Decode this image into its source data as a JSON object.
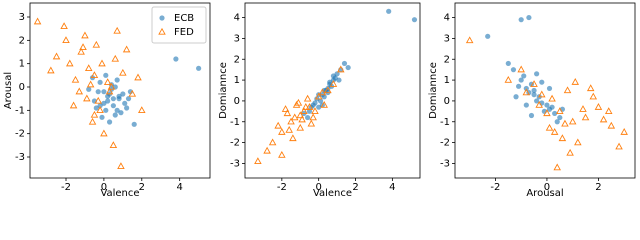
{
  "chart_data": [
    {
      "type": "scatter",
      "xlabel": "Valence",
      "ylabel": "Arousal",
      "xlim": [
        -3.9,
        5.6
      ],
      "ylim": [
        -3.9,
        3.6
      ],
      "xticks": [
        -2,
        0,
        2,
        4
      ],
      "yticks": [
        -3,
        -2,
        -1,
        0,
        1,
        2,
        3
      ],
      "legend": "upper right",
      "series": [
        {
          "name": "ECB",
          "color": "#1f77b4",
          "marker": "circle",
          "x": [
            0.2,
            0.5,
            -0.3,
            0.8,
            0.1,
            -0.5,
            1.0,
            0.4,
            0.0,
            0.6,
            -0.2,
            1.2,
            0.3,
            -0.8,
            0.7,
            0.9,
            -0.1,
            0.5,
            1.4,
            0.2,
            -0.4,
            0.6,
            1.1,
            0.0,
            0.3,
            -0.6,
            0.8,
            1.6,
            3.8,
            5.0,
            0.4,
            -0.2,
            1.3,
            0.1,
            0.7
          ],
          "values": [
            -0.4,
            -0.8,
            -0.2,
            -0.5,
            -1.0,
            -0.6,
            -0.3,
            0.1,
            -0.7,
            -1.2,
            0.2,
            -0.9,
            -0.3,
            -0.1,
            0.3,
            -1.1,
            -1.3,
            -0.5,
            -0.2,
            -0.6,
            -0.9,
            0.0,
            -0.7,
            -0.2,
            -1.5,
            0.4,
            -0.4,
            -1.6,
            1.2,
            0.8,
            -0.1,
            -0.8,
            -0.5,
            0.5,
            -1.0
          ]
        },
        {
          "name": "FED",
          "color": "#ff7f0e",
          "marker": "triangle",
          "x": [
            -0.5,
            -1.2,
            0.3,
            -0.8,
            -2.0,
            0.6,
            -0.2,
            -1.5,
            1.0,
            -0.9,
            -3.5,
            -2.1,
            0.9,
            2.0,
            -0.4,
            -1.8,
            0.2,
            -1.0,
            1.5,
            -0.6,
            -2.5,
            0.4,
            -1.3,
            -0.1,
            1.2,
            -0.7,
            -1.6,
            0.0,
            -2.8,
            0.7,
            -0.3,
            1.8,
            -1.1,
            -0.5,
            0.5
          ],
          "values": [
            0.5,
            1.5,
            -0.2,
            0.8,
            2.0,
            1.2,
            -1.0,
            0.3,
            0.6,
            -0.5,
            2.8,
            2.6,
            -3.4,
            -1.0,
            1.8,
            1.0,
            0.2,
            2.2,
            -0.3,
            -1.5,
            1.3,
            0.0,
            -0.2,
            1.0,
            1.6,
            0.1,
            -0.8,
            -2.0,
            0.7,
            2.4,
            -0.6,
            0.4,
            1.7,
            -1.2,
            -2.5
          ]
        }
      ]
    },
    {
      "type": "scatter",
      "xlabel": "Valence",
      "ylabel": "Domiannce",
      "xlim": [
        -4.0,
        5.5
      ],
      "ylim": [
        -3.7,
        4.7
      ],
      "xticks": [
        -2,
        0,
        2,
        4
      ],
      "yticks": [
        -3,
        -2,
        -1,
        0,
        1,
        2,
        3,
        4
      ],
      "series": [
        {
          "color": "#1f77b4",
          "marker": "circle",
          "x": [
            0.2,
            0.5,
            -0.3,
            0.8,
            0.1,
            -0.5,
            1.0,
            0.4,
            0.0,
            0.6,
            -0.2,
            1.2,
            0.3,
            -0.8,
            0.7,
            0.9,
            -0.1,
            0.5,
            1.4,
            0.2,
            -0.4,
            0.6,
            1.1,
            0.0,
            0.3,
            -0.6,
            0.8,
            1.6,
            3.8,
            5.2
          ],
          "values": [
            0.3,
            0.6,
            -0.2,
            1.0,
            0.0,
            -0.5,
            1.3,
            0.5,
            -0.3,
            0.9,
            -0.1,
            1.5,
            0.2,
            -0.6,
            0.7,
            1.1,
            0.1,
            0.4,
            1.8,
            -0.2,
            -0.3,
            0.8,
            1.0,
            0.3,
            0.5,
            -0.8,
            1.2,
            1.6,
            4.3,
            3.9
          ]
        },
        {
          "color": "#ff7f0e",
          "marker": "triangle",
          "x": [
            -1.0,
            -1.5,
            -0.5,
            -2.0,
            -0.8,
            -1.2,
            0.0,
            -2.5,
            -0.3,
            -1.8,
            -3.3,
            -1.0,
            0.5,
            -0.6,
            -2.2,
            -1.4,
            0.3,
            -0.9,
            -1.7,
            0.8,
            -2.8,
            -0.2,
            -1.1,
            -0.4,
            1.2,
            -1.6,
            -0.7,
            -2.0,
            0.2,
            -1.3
          ],
          "values": [
            -0.7,
            -1.0,
            -0.3,
            -1.5,
            -0.5,
            -0.2,
            0.2,
            -2.0,
            -0.8,
            -0.4,
            -2.9,
            -1.3,
            0.5,
            0.1,
            -1.2,
            -1.8,
            -0.2,
            -0.9,
            -0.6,
            0.8,
            -2.4,
            -0.5,
            -0.1,
            -1.1,
            1.5,
            -1.4,
            -0.3,
            -2.6,
            0.4,
            -0.8
          ]
        }
      ]
    },
    {
      "type": "scatter",
      "xlabel": "Arousal",
      "ylabel": "Domiannce",
      "xlim": [
        -3.57,
        3.42
      ],
      "ylim": [
        -3.7,
        4.7
      ],
      "xticks": [
        -2,
        0,
        2
      ],
      "yticks": [
        -3,
        -2,
        -1,
        0,
        1,
        2,
        3,
        4
      ],
      "series": [
        {
          "color": "#1f77b4",
          "marker": "circle",
          "x": [
            -0.5,
            -0.2,
            -0.8,
            0.1,
            -1.0,
            -0.4,
            0.3,
            -0.6,
            -1.3,
            0.0,
            -0.7,
            -0.3,
            0.5,
            -0.9,
            -0.1,
            -1.5,
            0.2,
            -0.5,
            -1.1,
            0.4,
            -0.2,
            -0.8,
            -1.0,
            -0.7,
            -2.3,
            0.6,
            -0.4,
            -1.2,
            0.1,
            -0.6
          ],
          "values": [
            0.3,
            -0.1,
            0.6,
            -0.4,
            1.0,
            0.0,
            -0.6,
            0.8,
            1.5,
            -0.2,
            0.4,
            0.2,
            -0.8,
            1.2,
            -0.5,
            1.8,
            -0.3,
            0.5,
            0.7,
            -1.0,
            0.9,
            -0.2,
            3.9,
            4.0,
            3.1,
            -0.4,
            1.3,
            0.2,
            0.6,
            -0.7
          ]
        },
        {
          "color": "#ff7f0e",
          "marker": "triangle",
          "x": [
            0.5,
            1.0,
            -0.2,
            1.5,
            0.3,
            2.0,
            0.8,
            -0.5,
            1.2,
            2.5,
            -3.0,
            2.8,
            0.4,
            0.0,
            1.8,
            -1.0,
            0.6,
            2.2,
            1.4,
            -0.3,
            0.9,
            1.7,
            -1.5,
            0.2,
            3.0,
            0.7,
            1.1,
            -0.8,
            2.4,
            0.1
          ],
          "values": [
            -0.5,
            -1.0,
            0.3,
            -0.8,
            -1.5,
            -0.3,
            0.5,
            0.8,
            -2.0,
            -1.2,
            2.9,
            -2.2,
            -3.2,
            -0.6,
            0.2,
            1.5,
            -1.8,
            -0.9,
            -0.4,
            -0.2,
            -2.5,
            0.6,
            1.0,
            0.1,
            -1.5,
            -1.1,
            0.9,
            0.4,
            -0.5,
            -1.3
          ]
        }
      ]
    }
  ]
}
